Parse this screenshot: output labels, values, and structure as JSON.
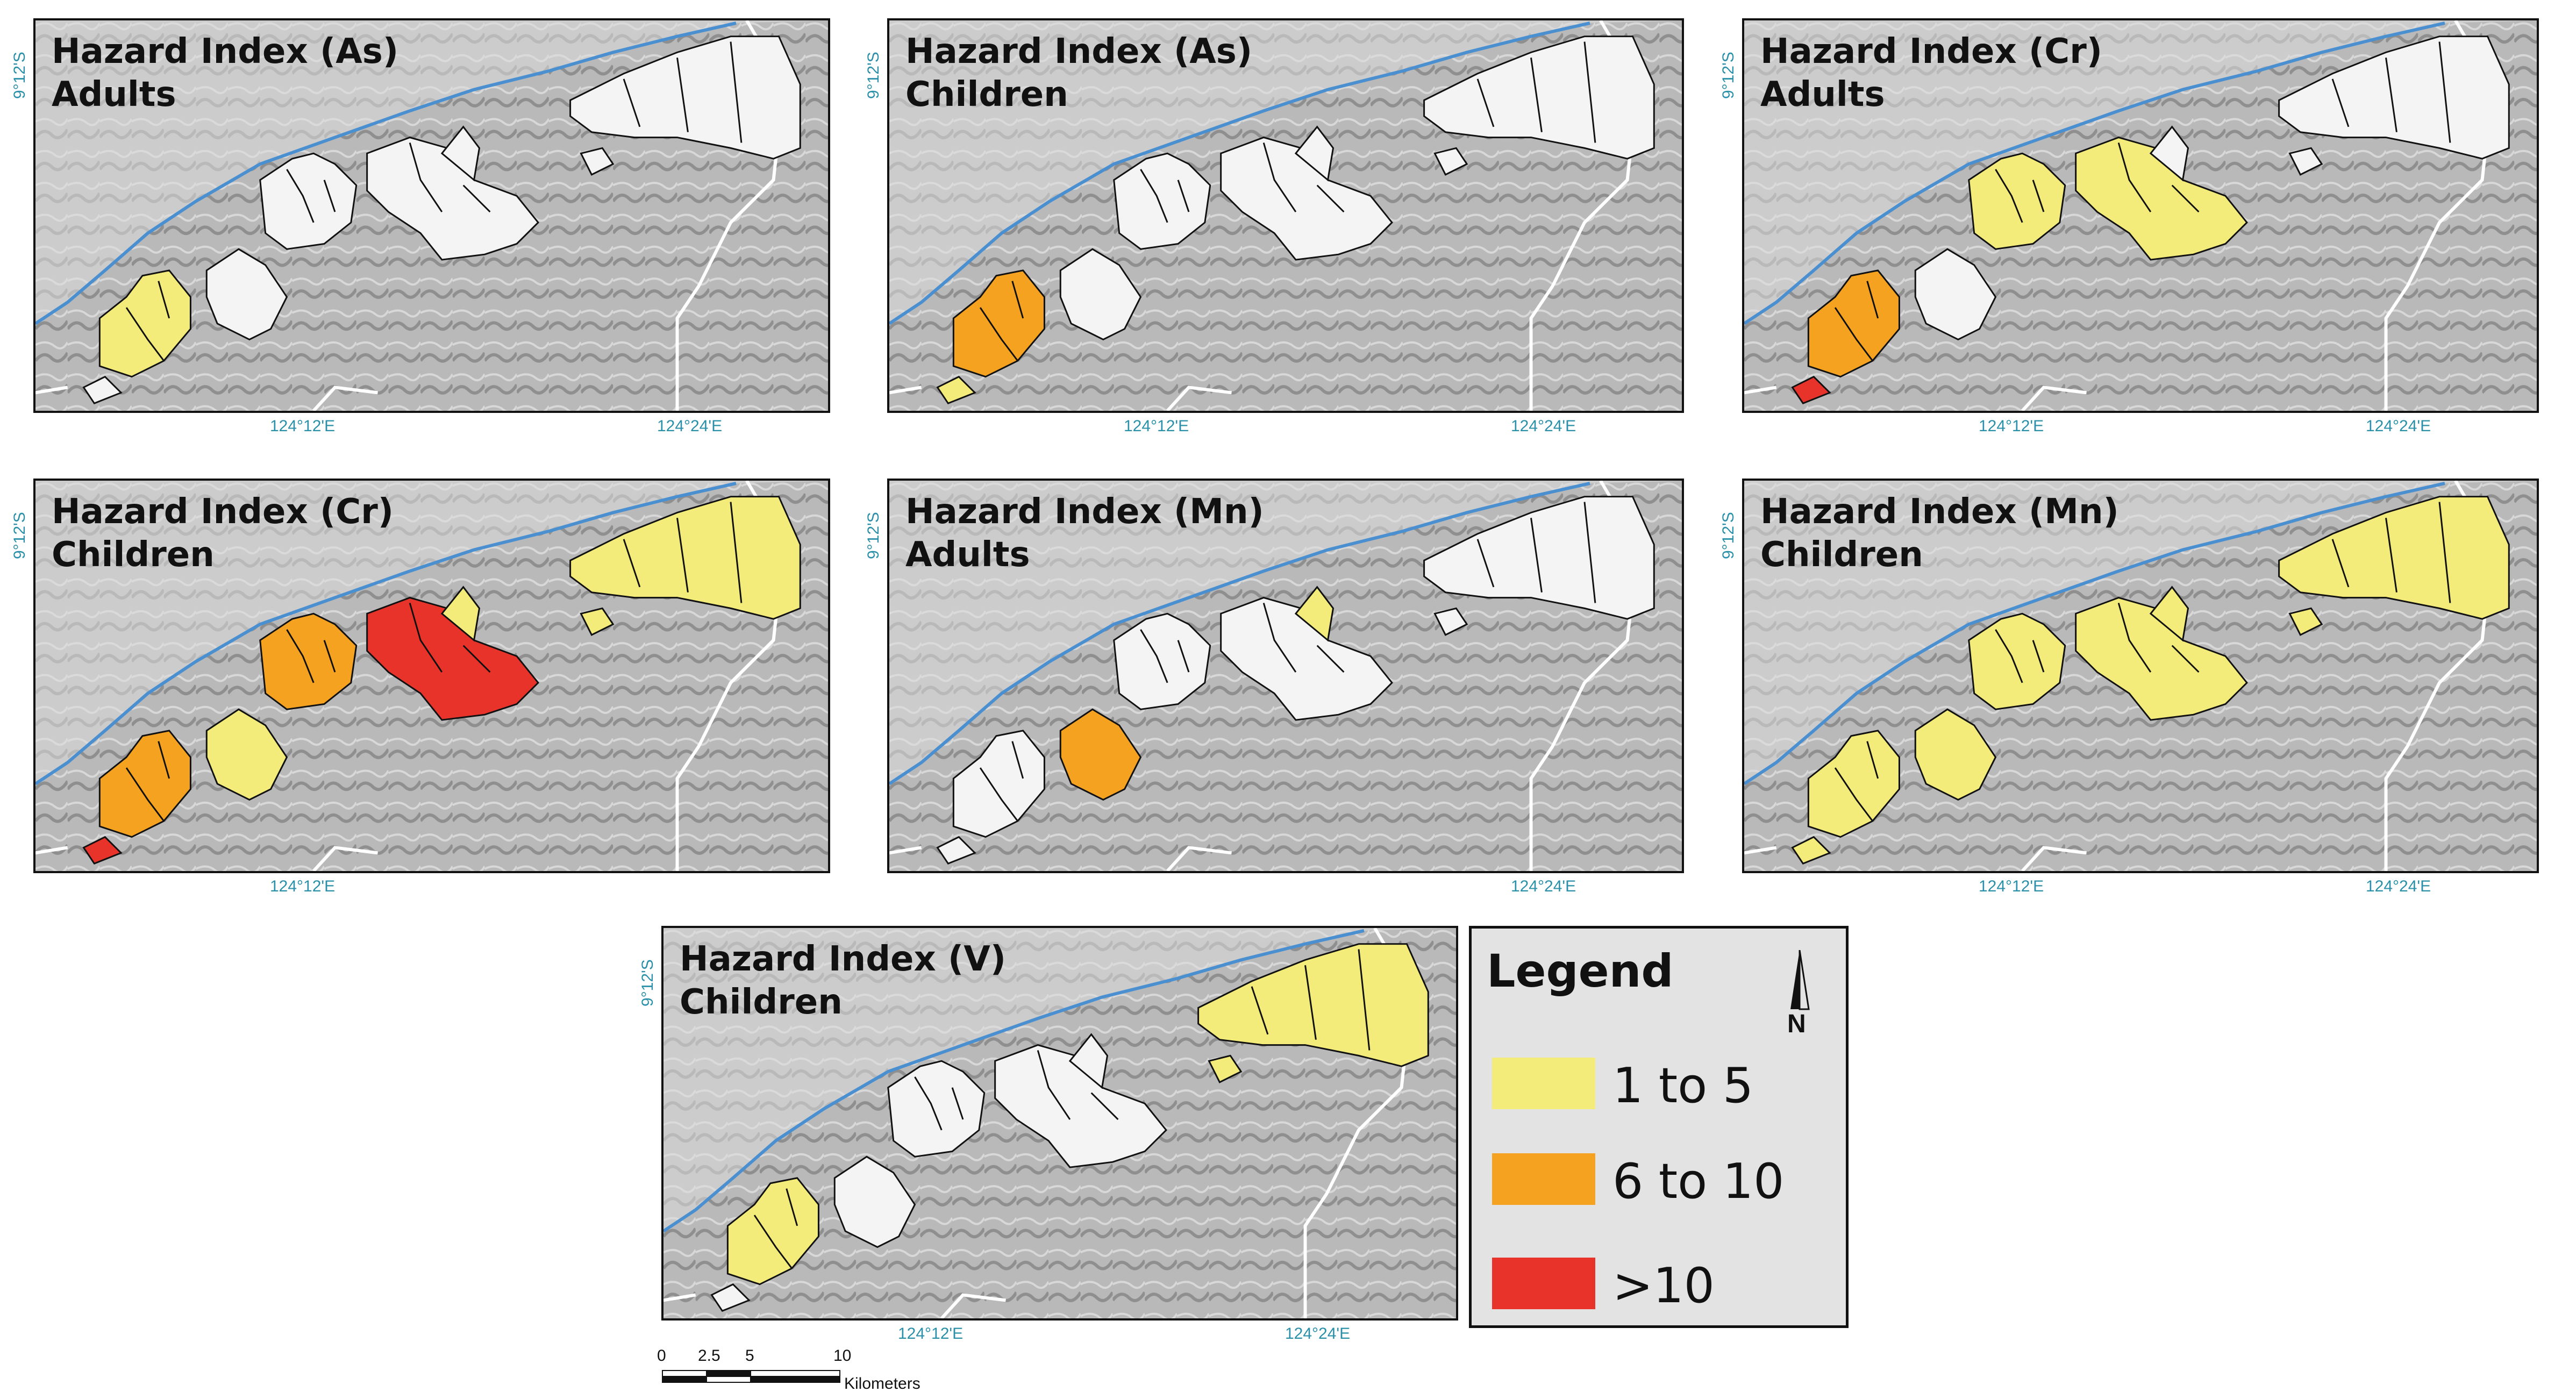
{
  "panels": [
    {
      "title_line1": "Hazard Index (As)",
      "title_line2": "Adults",
      "lat": "9°12'S",
      "lon_left": "124°12'E",
      "lon_right": "124°24'E"
    },
    {
      "title_line1": "Hazard Index (As)",
      "title_line2": "Children",
      "lat": "9°12'S",
      "lon_left": "124°12'E",
      "lon_right": "124°24'E"
    },
    {
      "title_line1": "Hazard Index (Cr)",
      "title_line2": "Adults",
      "lat": "9°12'S",
      "lon_left": "124°12'E",
      "lon_right": "124°24'E"
    },
    {
      "title_line1": "Hazard Index (Cr)",
      "title_line2": "Children",
      "lat": "9°12'S",
      "lon_left": "124°12'E",
      "lon_right": ""
    },
    {
      "title_line1": "Hazard Index (Mn)",
      "title_line2": "Adults",
      "lat": "9°12'S",
      "lon_left": "",
      "lon_right": "124°24'E"
    },
    {
      "title_line1": "Hazard Index (Mn)",
      "title_line2": "Children",
      "lat": "9°12'S",
      "lon_left": "124°12'E",
      "lon_right": "124°24'E"
    },
    {
      "title_line1": "Hazard Index (V)",
      "title_line2": "Children",
      "lat": "9°12'S",
      "lon_left": "124°12'E",
      "lon_right": "124°24'E"
    }
  ],
  "legend": {
    "title": "Legend",
    "north": "N",
    "classes": [
      {
        "label": "1 to 5",
        "color": "#f3ec7a"
      },
      {
        "label": "6 to 10",
        "color": "#f4a21f"
      },
      {
        "label": ">10",
        "color": "#e8332a"
      }
    ]
  },
  "scale": {
    "ticks": [
      "0",
      "2.5",
      "5",
      "10"
    ],
    "unit": "Kilometers"
  },
  "colors": {
    "background_relief": "#bdbdbd",
    "coast": "#4a8fd0",
    "road": "#ffffff",
    "none": "#f4f4f4"
  }
}
